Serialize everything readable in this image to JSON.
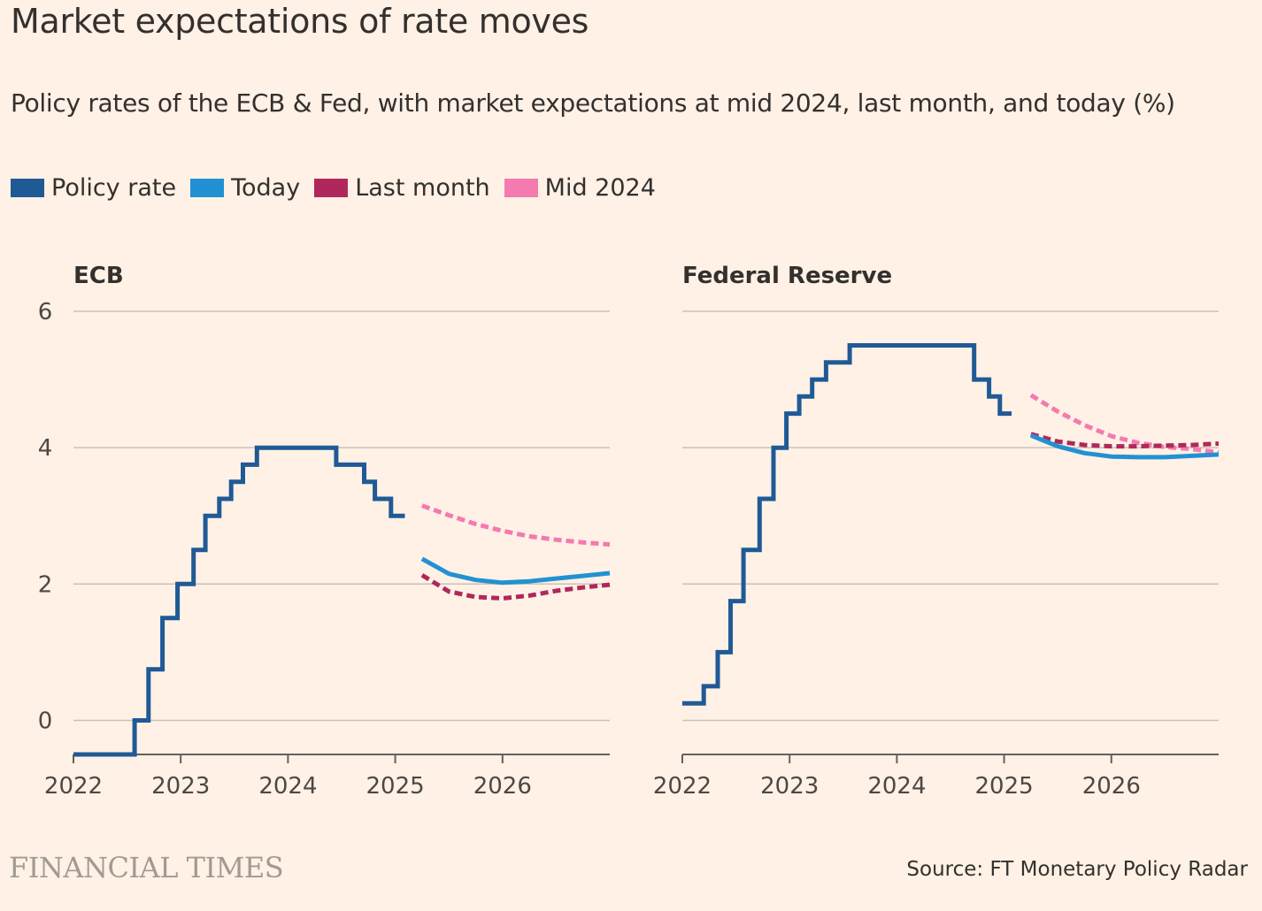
{
  "header": {
    "title": "Market expectations of rate moves",
    "subtitle": "Policy rates of the ECB & Fed, with market expectations at mid 2024, last month, and today (%)"
  },
  "legend": [
    {
      "label": "Policy rate",
      "color": "#1f5a96"
    },
    {
      "label": "Today",
      "color": "#2291d3"
    },
    {
      "label": "Last month",
      "color": "#b0285b"
    },
    {
      "label": "Mid 2024",
      "color": "#f47ab0"
    }
  ],
  "chart_data": [
    {
      "type": "line",
      "title": "ECB",
      "xlim": [
        2022,
        2027
      ],
      "ylim": [
        -0.5,
        6
      ],
      "x_ticks": [
        "2022",
        "2023",
        "2024",
        "2025",
        "2026"
      ],
      "y_ticks": [
        "0",
        "2",
        "4",
        "6"
      ],
      "series": [
        {
          "name": "Policy rate",
          "style": "step",
          "points": [
            [
              2022.0,
              -0.5
            ],
            [
              2022.57,
              -0.5
            ],
            [
              2022.57,
              0
            ],
            [
              2022.7,
              0
            ],
            [
              2022.7,
              0.75
            ],
            [
              2022.83,
              0.75
            ],
            [
              2022.83,
              1.5
            ],
            [
              2022.97,
              1.5
            ],
            [
              2022.97,
              2.0
            ],
            [
              2023.12,
              2.0
            ],
            [
              2023.12,
              2.5
            ],
            [
              2023.23,
              2.5
            ],
            [
              2023.23,
              3.0
            ],
            [
              2023.36,
              3.0
            ],
            [
              2023.36,
              3.25
            ],
            [
              2023.47,
              3.25
            ],
            [
              2023.47,
              3.5
            ],
            [
              2023.58,
              3.5
            ],
            [
              2023.58,
              3.75
            ],
            [
              2023.71,
              3.75
            ],
            [
              2023.71,
              4.0
            ],
            [
              2024.45,
              4.0
            ],
            [
              2024.45,
              3.75
            ],
            [
              2024.71,
              3.75
            ],
            [
              2024.71,
              3.5
            ],
            [
              2024.81,
              3.5
            ],
            [
              2024.81,
              3.25
            ],
            [
              2024.96,
              3.25
            ],
            [
              2024.96,
              3.0
            ],
            [
              2025.09,
              3.0
            ]
          ]
        },
        {
          "name": "Today",
          "style": "solid",
          "points": [
            [
              2025.25,
              2.37
            ],
            [
              2025.5,
              2.15
            ],
            [
              2025.75,
              2.06
            ],
            [
              2026.0,
              2.02
            ],
            [
              2026.25,
              2.04
            ],
            [
              2026.5,
              2.08
            ],
            [
              2026.75,
              2.12
            ],
            [
              2027.0,
              2.16
            ]
          ]
        },
        {
          "name": "Last month",
          "style": "dashed",
          "points": [
            [
              2025.25,
              2.13
            ],
            [
              2025.5,
              1.89
            ],
            [
              2025.75,
              1.81
            ],
            [
              2026.0,
              1.79
            ],
            [
              2026.25,
              1.83
            ],
            [
              2026.5,
              1.9
            ],
            [
              2026.75,
              1.95
            ],
            [
              2027.0,
              1.99
            ]
          ]
        },
        {
          "name": "Mid 2024",
          "style": "dashed",
          "points": [
            [
              2025.25,
              3.15
            ],
            [
              2025.5,
              3.01
            ],
            [
              2025.75,
              2.88
            ],
            [
              2026.0,
              2.78
            ],
            [
              2026.25,
              2.7
            ],
            [
              2026.5,
              2.65
            ],
            [
              2026.75,
              2.61
            ],
            [
              2027.0,
              2.58
            ]
          ]
        }
      ]
    },
    {
      "type": "line",
      "title": "Federal Reserve",
      "xlim": [
        2022,
        2027
      ],
      "ylim": [
        -0.5,
        6
      ],
      "x_ticks": [
        "2022",
        "2023",
        "2024",
        "2025",
        "2026"
      ],
      "y_ticks": [],
      "series": [
        {
          "name": "Policy rate",
          "style": "step",
          "points": [
            [
              2022.0,
              0.25
            ],
            [
              2022.2,
              0.25
            ],
            [
              2022.2,
              0.5
            ],
            [
              2022.33,
              0.5
            ],
            [
              2022.33,
              1.0
            ],
            [
              2022.45,
              1.0
            ],
            [
              2022.45,
              1.75
            ],
            [
              2022.57,
              1.75
            ],
            [
              2022.57,
              2.5
            ],
            [
              2022.72,
              2.5
            ],
            [
              2022.72,
              3.25
            ],
            [
              2022.85,
              3.25
            ],
            [
              2022.85,
              4.0
            ],
            [
              2022.97,
              4.0
            ],
            [
              2022.97,
              4.5
            ],
            [
              2023.09,
              4.5
            ],
            [
              2023.09,
              4.75
            ],
            [
              2023.21,
              4.75
            ],
            [
              2023.21,
              5.0
            ],
            [
              2023.34,
              5.0
            ],
            [
              2023.34,
              5.25
            ],
            [
              2023.56,
              5.25
            ],
            [
              2023.56,
              5.5
            ],
            [
              2024.72,
              5.5
            ],
            [
              2024.72,
              5.0
            ],
            [
              2024.86,
              5.0
            ],
            [
              2024.86,
              4.75
            ],
            [
              2024.96,
              4.75
            ],
            [
              2024.96,
              4.5
            ],
            [
              2025.07,
              4.5
            ]
          ]
        },
        {
          "name": "Today",
          "style": "solid",
          "points": [
            [
              2025.25,
              4.18
            ],
            [
              2025.5,
              4.02
            ],
            [
              2025.75,
              3.92
            ],
            [
              2026.0,
              3.87
            ],
            [
              2026.25,
              3.86
            ],
            [
              2026.5,
              3.86
            ],
            [
              2026.75,
              3.88
            ],
            [
              2027.0,
              3.9
            ]
          ]
        },
        {
          "name": "Last month",
          "style": "dashed",
          "points": [
            [
              2025.25,
              4.2
            ],
            [
              2025.5,
              4.09
            ],
            [
              2025.75,
              4.04
            ],
            [
              2026.0,
              4.02
            ],
            [
              2026.25,
              4.02
            ],
            [
              2026.5,
              4.03
            ],
            [
              2026.75,
              4.04
            ],
            [
              2027.0,
              4.06
            ]
          ]
        },
        {
          "name": "Mid 2024",
          "style": "dashed",
          "points": [
            [
              2025.25,
              4.77
            ],
            [
              2025.5,
              4.53
            ],
            [
              2025.75,
              4.33
            ],
            [
              2026.0,
              4.17
            ],
            [
              2026.25,
              4.07
            ],
            [
              2026.5,
              4.01
            ],
            [
              2026.75,
              3.98
            ],
            [
              2027.0,
              3.93
            ]
          ]
        }
      ]
    }
  ],
  "footer": {
    "brand": "FINANCIAL TIMES",
    "source": "Source: FT Monetary Policy Radar"
  }
}
